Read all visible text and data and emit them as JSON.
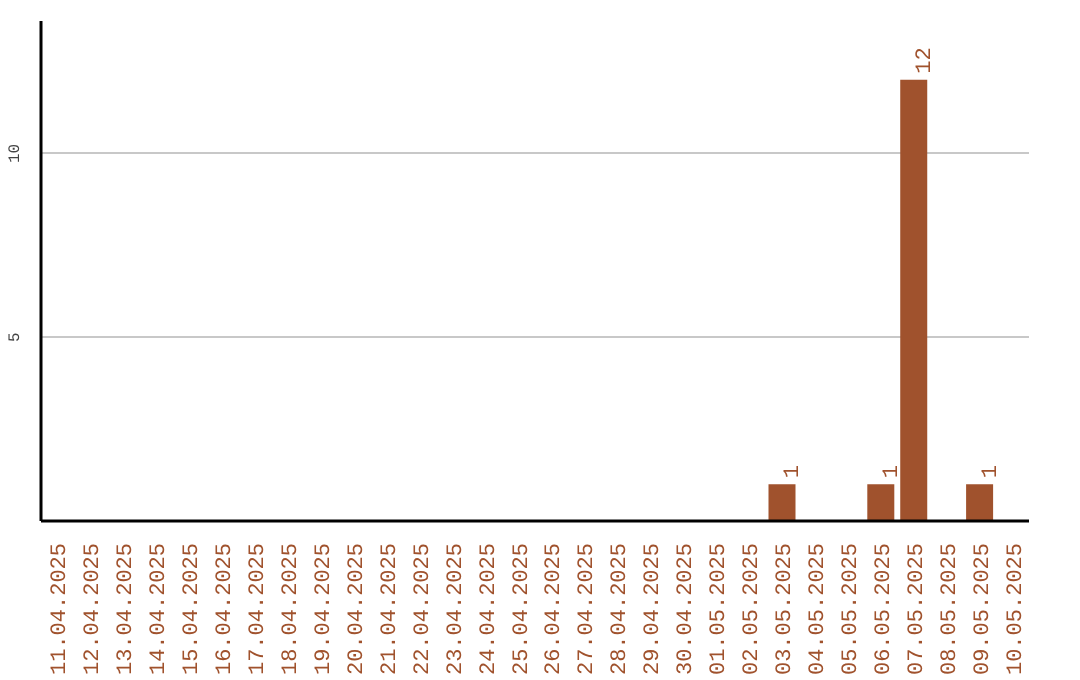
{
  "chart_data": {
    "type": "bar",
    "categories": [
      "11.04.2025",
      "12.04.2025",
      "13.04.2025",
      "14.04.2025",
      "15.04.2025",
      "16.04.2025",
      "17.04.2025",
      "18.04.2025",
      "19.04.2025",
      "20.04.2025",
      "21.04.2025",
      "22.04.2025",
      "23.04.2025",
      "24.04.2025",
      "25.04.2025",
      "26.04.2025",
      "27.04.2025",
      "28.04.2025",
      "29.04.2025",
      "30.04.2025",
      "01.05.2025",
      "02.05.2025",
      "03.05.2025",
      "04.05.2025",
      "05.05.2025",
      "06.05.2025",
      "07.05.2025",
      "08.05.2025",
      "09.05.2025",
      "10.05.2025"
    ],
    "values": [
      0,
      0,
      0,
      0,
      0,
      0,
      0,
      0,
      0,
      0,
      0,
      0,
      0,
      0,
      0,
      0,
      0,
      0,
      0,
      0,
      0,
      0,
      1,
      0,
      0,
      1,
      12,
      0,
      1,
      0
    ],
    "value_labels": [
      null,
      null,
      null,
      null,
      null,
      null,
      null,
      null,
      null,
      null,
      null,
      null,
      null,
      null,
      null,
      null,
      null,
      null,
      null,
      null,
      null,
      null,
      "1",
      null,
      null,
      "1",
      "12",
      null,
      "1",
      null
    ],
    "color": "#a0522d",
    "ylim": [
      0,
      13.6
    ],
    "yticks": [
      5,
      10
    ],
    "grid": "y"
  }
}
